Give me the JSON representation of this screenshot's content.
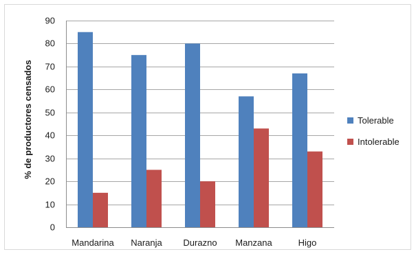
{
  "chart_data": {
    "type": "bar",
    "categories": [
      "Mandarina",
      "Naranja",
      "Durazno",
      "Manzana",
      "Higo"
    ],
    "series": [
      {
        "name": "Tolerable",
        "values": [
          85,
          75,
          80,
          57,
          67
        ],
        "color": "#4f81bd"
      },
      {
        "name": "Intolerable",
        "values": [
          15,
          25,
          20,
          43,
          33
        ],
        "color": "#c0504d"
      }
    ],
    "ylabel": "% de productores censados",
    "ylim": [
      0,
      90
    ],
    "yticks": [
      0,
      10,
      20,
      30,
      40,
      50,
      60,
      70,
      80,
      90
    ],
    "grid": true,
    "legend": "right"
  }
}
